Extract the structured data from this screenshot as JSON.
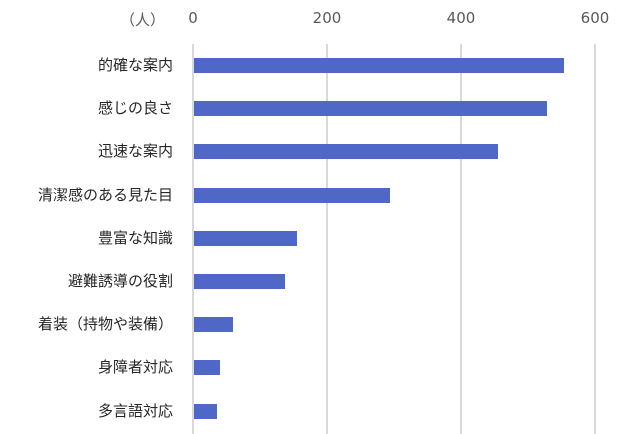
{
  "chart_data": {
    "type": "bar",
    "orientation": "horizontal",
    "title": "",
    "xlabel": "",
    "ylabel": "",
    "unit_label": "（人）",
    "xlim": [
      0,
      600
    ],
    "x_ticks": [
      "0",
      "200",
      "400",
      "600"
    ],
    "x_axis_position": "top",
    "grid": true,
    "legend": null,
    "bar_color": "#4f68c8",
    "grid_color": "#d9d9d9",
    "categories": [
      "的確な案内",
      "感じの良さ",
      "迅速な案内",
      "清潔感のある見た目",
      "豊富な知識",
      "避難誘導の役割",
      "着装（持物や装備）",
      "身障者対応",
      "多言語対応"
    ],
    "values": [
      555,
      530,
      457,
      296,
      157,
      139,
      61,
      42,
      37
    ]
  }
}
